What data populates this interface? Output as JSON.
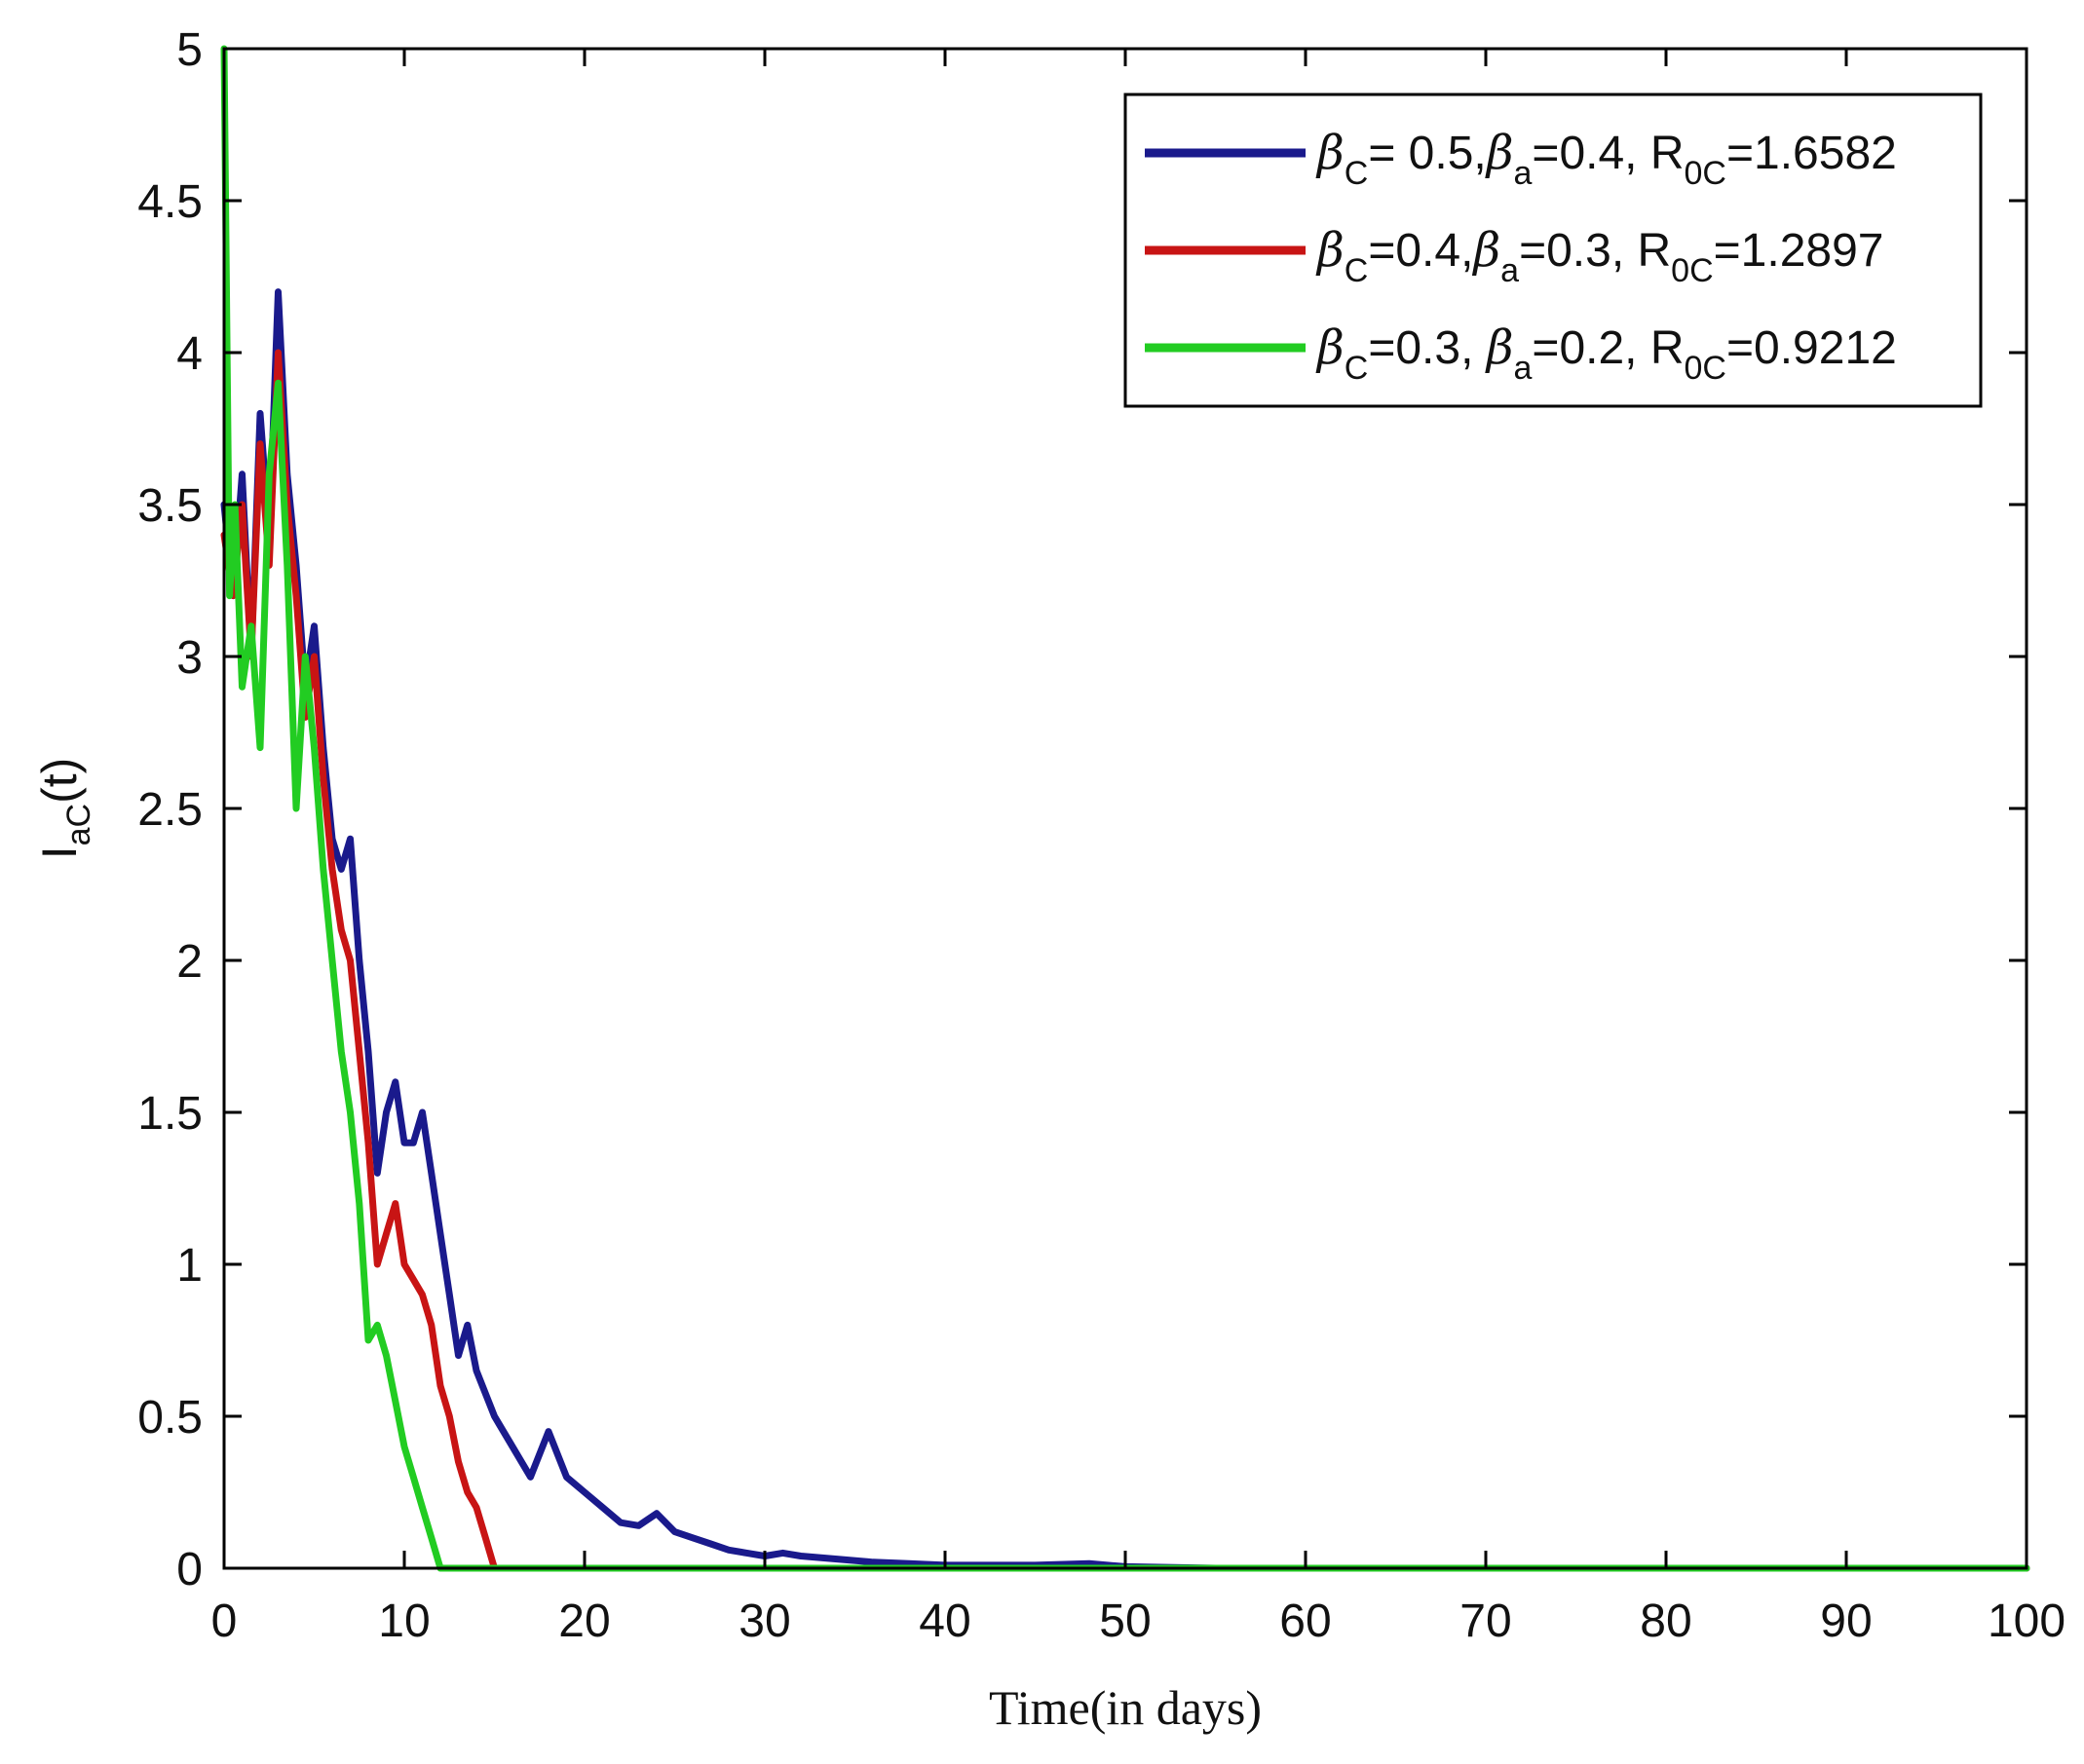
{
  "chart_data": {
    "type": "line",
    "xlabel": "Time(in days)",
    "ylabel": {
      "main": "I",
      "sub": "aC",
      "rest": "(t)"
    },
    "xlim": [
      0,
      100
    ],
    "ylim": [
      0,
      5
    ],
    "xticks": [
      0,
      10,
      20,
      30,
      40,
      50,
      60,
      70,
      80,
      90,
      100
    ],
    "yticks": [
      0,
      0.5,
      1,
      1.5,
      2,
      2.5,
      3,
      3.5,
      4,
      4.5,
      5
    ],
    "xtick_labels": [
      "0",
      "10",
      "20",
      "30",
      "40",
      "50",
      "60",
      "70",
      "80",
      "90",
      "100"
    ],
    "ytick_labels": [
      "0",
      "0.5",
      "1",
      "1.5",
      "2",
      "2.5",
      "3",
      "3.5",
      "4",
      "4.5",
      "5"
    ],
    "grid": false,
    "legend_position": "top-right",
    "series": [
      {
        "name": "βC= 0.5,βa=0.4, R0C=1.6582",
        "legend": [
          {
            "t": "β",
            "g": true
          },
          {
            "t": "C",
            "s": true
          },
          {
            "t": "= 0.5,"
          },
          {
            "t": "β",
            "g": true
          },
          {
            "t": "a",
            "s": true
          },
          {
            "t": "=0.4, R"
          },
          {
            "t": "0C",
            "s": true
          },
          {
            "t": "=1.6582"
          }
        ],
        "color": "#1a1a8c",
        "x": [
          0,
          0.5,
          1,
          1.5,
          2,
          2.5,
          3,
          3.5,
          4,
          4.5,
          5,
          5.5,
          6,
          6.5,
          7,
          7.5,
          8,
          8.5,
          9,
          9.5,
          10,
          10.5,
          11,
          11.5,
          12,
          12.5,
          13,
          13.5,
          14,
          15,
          16,
          17,
          18,
          19,
          20,
          21,
          22,
          23,
          24,
          25,
          26,
          27,
          28,
          29,
          30,
          31,
          32,
          34,
          36,
          38,
          40,
          45,
          48,
          50,
          55,
          60,
          70,
          80,
          90,
          100
        ],
        "y": [
          3.5,
          3.2,
          3.6,
          3.0,
          3.8,
          3.4,
          4.2,
          3.6,
          3.3,
          2.9,
          3.1,
          2.7,
          2.4,
          2.3,
          2.4,
          2.0,
          1.7,
          1.3,
          1.5,
          1.6,
          1.4,
          1.4,
          1.5,
          1.3,
          1.1,
          0.9,
          0.7,
          0.8,
          0.65,
          0.5,
          0.4,
          0.3,
          0.45,
          0.3,
          0.25,
          0.2,
          0.15,
          0.14,
          0.18,
          0.12,
          0.1,
          0.08,
          0.06,
          0.05,
          0.04,
          0.05,
          0.04,
          0.03,
          0.02,
          0.015,
          0.01,
          0.01,
          0.015,
          0.005,
          0.0,
          0.0,
          0.0,
          0.0,
          0.0,
          0.0
        ]
      },
      {
        "name": "βC=0.4,βa=0.3, R0C=1.2897",
        "legend": [
          {
            "t": "β",
            "g": true
          },
          {
            "t": "C",
            "s": true
          },
          {
            "t": "=0.4,"
          },
          {
            "t": "β",
            "g": true
          },
          {
            "t": "a",
            "s": true
          },
          {
            "t": "=0.3, R"
          },
          {
            "t": "0C",
            "s": true
          },
          {
            "t": "=1.2897"
          }
        ],
        "color": "#c81414",
        "x": [
          0,
          0.5,
          1,
          1.5,
          2,
          2.5,
          3,
          3.5,
          4,
          4.5,
          5,
          5.5,
          6,
          6.5,
          7,
          7.5,
          8,
          8.5,
          9,
          9.5,
          10,
          10.5,
          11,
          11.5,
          12,
          12.5,
          13,
          13.5,
          14,
          14.5,
          15,
          20,
          40,
          60,
          80,
          100
        ],
        "y": [
          3.4,
          3.2,
          3.5,
          3.0,
          3.7,
          3.3,
          4.0,
          3.5,
          3.2,
          2.8,
          3.0,
          2.6,
          2.3,
          2.1,
          2.0,
          1.7,
          1.4,
          1.0,
          1.1,
          1.2,
          1.0,
          0.95,
          0.9,
          0.8,
          0.6,
          0.5,
          0.35,
          0.25,
          0.2,
          0.1,
          0.0,
          0.0,
          0.0,
          0.0,
          0.0,
          0.0
        ]
      },
      {
        "name": "βC=0.3, βa=0.2, R0C=0.9212",
        "legend": [
          {
            "t": "β",
            "g": true
          },
          {
            "t": "C",
            "s": true
          },
          {
            "t": "=0.3, "
          },
          {
            "t": "β",
            "g": true
          },
          {
            "t": "a",
            "s": true
          },
          {
            "t": "=0.2, R"
          },
          {
            "t": "0C",
            "s": true
          },
          {
            "t": "=0.9212"
          }
        ],
        "color": "#22cc22",
        "x": [
          0,
          0.3,
          0.6,
          1,
          1.5,
          2,
          2.5,
          3,
          3.5,
          4,
          4.5,
          5,
          5.5,
          6,
          6.5,
          7,
          7.5,
          8,
          8.5,
          9,
          9.5,
          10,
          10.5,
          11,
          11.5,
          12,
          13,
          20,
          40,
          60,
          80,
          100
        ],
        "y": [
          5.0,
          3.2,
          3.5,
          2.9,
          3.1,
          2.7,
          3.6,
          3.9,
          3.3,
          2.5,
          3.0,
          2.7,
          2.3,
          2.0,
          1.7,
          1.5,
          1.2,
          0.75,
          0.8,
          0.7,
          0.55,
          0.4,
          0.3,
          0.2,
          0.1,
          0.0,
          0.0,
          0.0,
          0.0,
          0.0,
          0.0,
          0.0
        ]
      }
    ]
  }
}
